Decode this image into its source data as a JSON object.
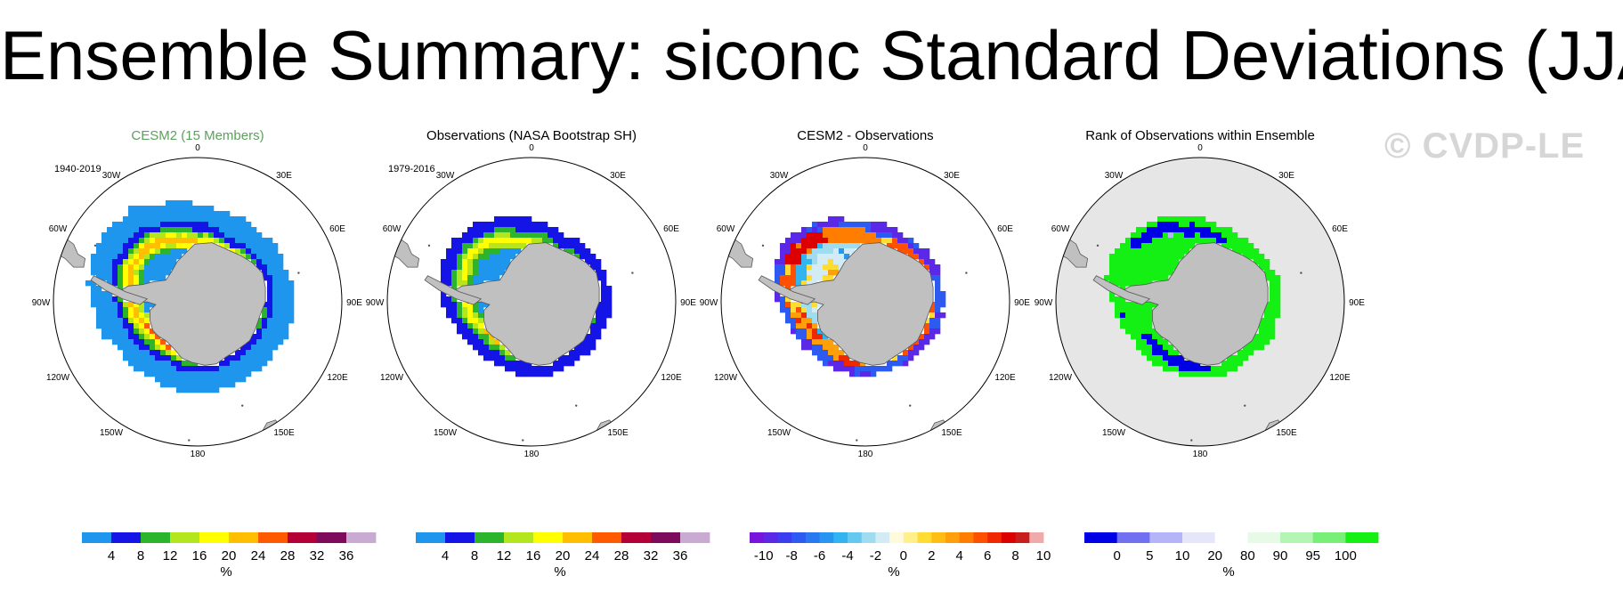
{
  "page": {
    "title": "Ensemble Summary: siconc Standard Deviations (JJA)",
    "watermark": "© CVDP-LE"
  },
  "colors": {
    "land": "#c0c0c0",
    "ocean": "#ffffff",
    "rank_background": "#e6e6e6",
    "model_title": "#5e9f5e"
  },
  "longitude_labels": [
    "0",
    "30E",
    "60E",
    "90E",
    "120E",
    "150E",
    "180",
    "150W",
    "120W",
    "90W",
    "60W",
    "30W"
  ],
  "chart_data": [
    {
      "type": "heatmap",
      "title": "CESM2 (15 Members)",
      "period": "1940-2019",
      "projection": "south-polar-stereographic",
      "units": "%",
      "levels": [
        4,
        8,
        12,
        16,
        20,
        24,
        28,
        32,
        36
      ],
      "tick_labels": [
        "4",
        "8",
        "12",
        "16",
        "20",
        "24",
        "28",
        "32",
        "36"
      ],
      "colors": [
        "#1e96ee",
        "#1414e6",
        "#2db42d",
        "#b4e61e",
        "#ffff00",
        "#ffbe00",
        "#ff5a00",
        "#b40037",
        "#7d0a5a",
        "#c8aad2"
      ],
      "field": "std_model"
    },
    {
      "type": "heatmap",
      "title": "Observations (NASA Bootstrap SH)",
      "period": "1979-2016",
      "projection": "south-polar-stereographic",
      "units": "%",
      "levels": [
        4,
        8,
        12,
        16,
        20,
        24,
        28,
        32,
        36
      ],
      "tick_labels": [
        "4",
        "8",
        "12",
        "16",
        "20",
        "24",
        "28",
        "32",
        "36"
      ],
      "colors": [
        "#1e96ee",
        "#1414e6",
        "#2db42d",
        "#b4e61e",
        "#ffff00",
        "#ffbe00",
        "#ff5a00",
        "#b40037",
        "#7d0a5a",
        "#c8aad2"
      ],
      "field": "std_obs"
    },
    {
      "type": "heatmap",
      "title": "CESM2 - Observations",
      "period": "",
      "projection": "south-polar-stereographic",
      "units": "%",
      "levels": [
        -10,
        -9,
        -8,
        -7,
        -6,
        -5,
        -4,
        -3,
        -2,
        -1,
        0,
        1,
        2,
        3,
        4,
        5,
        6,
        7,
        8,
        9,
        10
      ],
      "tick_labels": [
        "-10",
        "-8",
        "-6",
        "-4",
        "-2",
        "0",
        "2",
        "4",
        "6",
        "8",
        "10"
      ],
      "colors": [
        "#7814dc",
        "#5a28e6",
        "#3c3cf0",
        "#2d5af0",
        "#2878f0",
        "#2896f0",
        "#32b4f0",
        "#64c8f0",
        "#a0dcf0",
        "#d2ebf5",
        "#fffadc",
        "#fff08c",
        "#ffdc32",
        "#ffbe14",
        "#ffa00a",
        "#ff7d00",
        "#ff5000",
        "#f02800",
        "#dc0000",
        "#c81e1e",
        "#f0aaaa"
      ],
      "field": "diff"
    },
    {
      "type": "heatmap",
      "title": "Rank of Observations within Ensemble",
      "period": "",
      "projection": "south-polar-stereographic",
      "units": "%",
      "levels": [
        0,
        5,
        10,
        20,
        80,
        90,
        95,
        100
      ],
      "tick_labels": [
        "0",
        "5",
        "10",
        "20",
        "80",
        "90",
        "95",
        "100"
      ],
      "colors": [
        "#0000e6",
        "#7070f0",
        "#b4b4f8",
        "#e6e6fa",
        "#ffffff",
        "#e6fae6",
        "#b4f5b4",
        "#78f078",
        "#14f014"
      ],
      "field": "rank"
    }
  ]
}
